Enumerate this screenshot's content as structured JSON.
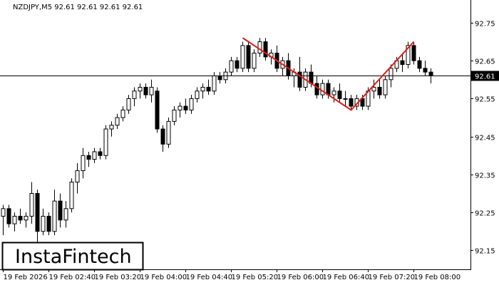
{
  "chart_data": {
    "type": "candlestick",
    "title": "NZDJPY,M5  92.61 92.61 92.61 92.61",
    "watermark": "InstaFintech",
    "categories": [
      "19 Feb 2026",
      null,
      null,
      null,
      null,
      null,
      null,
      null,
      "19 Feb 02:40",
      null,
      null,
      null,
      null,
      null,
      null,
      null,
      "19 Feb 03:20",
      null,
      null,
      null,
      null,
      null,
      null,
      null,
      "19 Feb 04:00",
      null,
      null,
      null,
      null,
      null,
      null,
      null,
      "19 Feb 04:40",
      null,
      null,
      null,
      null,
      null,
      null,
      null,
      "19 Feb 05:20",
      null,
      null,
      null,
      null,
      null,
      null,
      null,
      "19 Feb 06:00",
      null,
      null,
      null,
      null,
      null,
      null,
      null,
      "19 Feb 06:40",
      null,
      null,
      null,
      null,
      null,
      null,
      null,
      "19 Feb 07:20",
      null,
      null,
      null,
      null,
      null,
      null,
      null,
      "19 Feb 08:00",
      null,
      null,
      null
    ],
    "open": [
      92.24,
      92.26,
      92.22,
      92.24,
      92.23,
      92.24,
      92.3,
      92.2,
      92.24,
      92.2,
      92.28,
      92.23,
      92.26,
      92.33,
      92.36,
      92.4,
      92.39,
      92.41,
      92.4,
      92.47,
      92.48,
      92.5,
      92.52,
      92.55,
      92.57,
      92.58,
      92.56,
      92.57,
      92.47,
      92.43,
      92.49,
      92.52,
      92.53,
      92.52,
      92.55,
      92.57,
      92.58,
      92.57,
      92.61,
      92.6,
      92.62,
      92.65,
      92.63,
      92.69,
      92.63,
      92.67,
      92.7,
      92.66,
      92.67,
      92.63,
      92.65,
      92.61,
      92.62,
      92.58,
      92.62,
      92.59,
      92.56,
      92.59,
      92.56,
      92.57,
      92.55,
      92.55,
      92.53,
      92.55,
      92.53,
      92.57,
      92.58,
      92.56,
      92.6,
      92.63,
      92.65,
      92.64,
      92.69,
      92.65,
      92.63,
      92.62
    ],
    "high": [
      92.27,
      92.27,
      92.25,
      92.26,
      92.25,
      92.33,
      92.31,
      92.26,
      92.25,
      92.31,
      92.3,
      92.28,
      92.34,
      92.38,
      92.42,
      92.41,
      92.42,
      92.42,
      92.48,
      92.49,
      92.51,
      92.53,
      92.56,
      92.58,
      92.59,
      92.59,
      92.6,
      92.58,
      92.48,
      92.5,
      92.53,
      92.54,
      92.55,
      92.56,
      92.58,
      92.59,
      92.6,
      92.62,
      92.62,
      92.63,
      92.66,
      92.66,
      92.7,
      92.7,
      92.68,
      92.71,
      92.71,
      92.68,
      92.69,
      92.66,
      92.67,
      92.63,
      92.66,
      92.63,
      92.64,
      92.61,
      92.6,
      92.6,
      92.58,
      92.59,
      92.57,
      92.56,
      92.56,
      92.56,
      92.58,
      92.6,
      92.6,
      92.61,
      92.64,
      92.66,
      92.67,
      92.7,
      92.7,
      92.66,
      92.65,
      92.63
    ],
    "low": [
      92.19,
      92.21,
      92.2,
      92.22,
      92.21,
      92.22,
      92.17,
      92.19,
      92.19,
      92.19,
      92.21,
      92.21,
      92.25,
      92.3,
      92.34,
      92.37,
      92.38,
      92.39,
      92.39,
      92.45,
      92.47,
      92.49,
      92.51,
      92.53,
      92.55,
      92.55,
      92.54,
      92.46,
      92.41,
      92.42,
      92.48,
      92.5,
      92.51,
      92.51,
      92.54,
      92.55,
      92.56,
      92.56,
      92.59,
      92.59,
      92.61,
      92.62,
      92.62,
      92.62,
      92.62,
      92.66,
      92.65,
      92.64,
      92.62,
      92.61,
      92.6,
      92.58,
      92.57,
      92.57,
      92.58,
      92.55,
      92.55,
      92.55,
      92.54,
      92.54,
      92.53,
      92.52,
      92.52,
      92.52,
      92.52,
      92.55,
      92.55,
      92.55,
      92.58,
      92.62,
      92.62,
      92.63,
      92.64,
      92.62,
      92.61,
      92.59
    ],
    "close": [
      92.26,
      92.22,
      92.24,
      92.23,
      92.24,
      92.3,
      92.2,
      92.24,
      92.2,
      92.28,
      92.23,
      92.26,
      92.33,
      92.36,
      92.4,
      92.39,
      92.41,
      92.4,
      92.47,
      92.48,
      92.5,
      92.52,
      92.55,
      92.57,
      92.58,
      92.56,
      92.58,
      92.47,
      92.43,
      92.49,
      92.52,
      92.53,
      92.52,
      92.55,
      92.57,
      92.58,
      92.57,
      92.61,
      92.6,
      92.62,
      92.65,
      92.63,
      92.69,
      92.63,
      92.67,
      92.7,
      92.66,
      92.67,
      92.63,
      92.65,
      92.61,
      92.62,
      92.58,
      92.62,
      92.59,
      92.56,
      92.59,
      92.56,
      92.57,
      92.55,
      92.55,
      92.53,
      92.55,
      92.53,
      92.57,
      92.58,
      92.56,
      92.6,
      92.63,
      92.65,
      92.64,
      92.69,
      92.65,
      92.63,
      92.62,
      92.61
    ],
    "up_color": "#ffffff",
    "down_color": "#000000",
    "current_price": 92.61,
    "pattern": {
      "color": "#e41b17",
      "x": [
        42,
        61,
        72
      ],
      "values": [
        92.71,
        92.52,
        92.7
      ]
    },
    "ylim": [
      92.1,
      92.81
    ],
    "yticks": [
      92.15,
      92.25,
      92.35,
      92.45,
      92.55,
      92.65,
      92.75
    ]
  }
}
